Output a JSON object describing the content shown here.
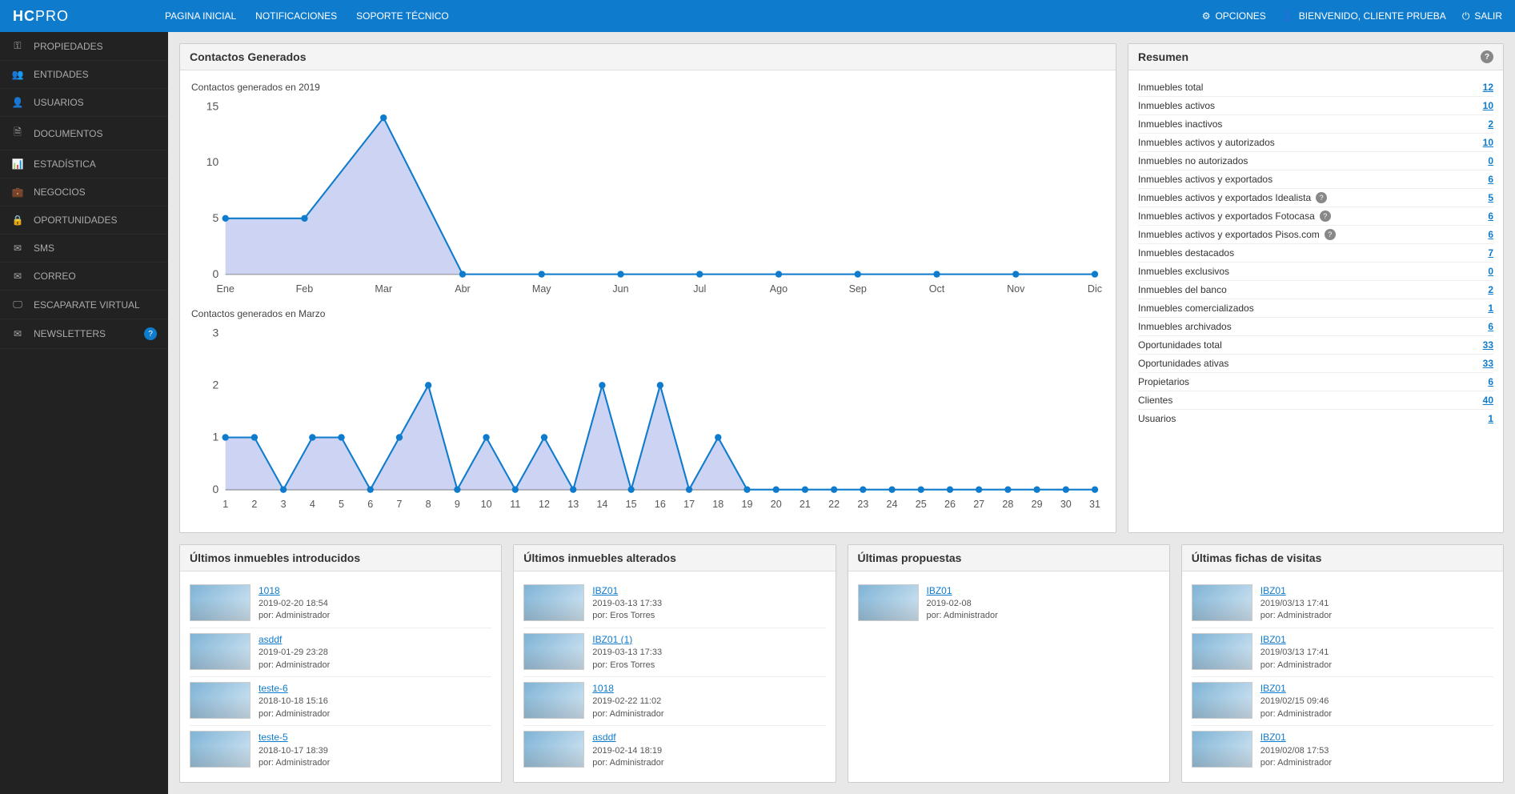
{
  "brand": {
    "pre": "HC",
    "post": "PRO"
  },
  "topnav": [
    {
      "label": "PAGINA INICIAL"
    },
    {
      "label": "NOTIFICACIONES"
    },
    {
      "label": "SOPORTE TÉCNICO"
    }
  ],
  "topright": {
    "options": "OPCIONES",
    "welcome": "BIENVENIDO, CLIENTE PRUEBA",
    "logout": "SALIR"
  },
  "sidebar": [
    {
      "icon": "key",
      "label": "PROPIEDADES"
    },
    {
      "icon": "users",
      "label": "ENTIDADES"
    },
    {
      "icon": "user",
      "label": "USUARIOS"
    },
    {
      "icon": "doc",
      "label": "DOCUMENTOS"
    },
    {
      "icon": "bars",
      "label": "ESTADÍSTICA"
    },
    {
      "icon": "briefcase",
      "label": "NEGOCIOS"
    },
    {
      "icon": "lock",
      "label": "OPORTUNIDADES"
    },
    {
      "icon": "phone",
      "label": "SMS"
    },
    {
      "icon": "mail",
      "label": "CORREO"
    },
    {
      "icon": "screen",
      "label": "ESCAPARATE VIRTUAL"
    },
    {
      "icon": "mail",
      "label": "NEWSLETTERS",
      "badge": "?"
    }
  ],
  "charts_panel": {
    "title": "Contactos Generados",
    "chart_year": {
      "title": "Contactos generados en 2019",
      "type": "area",
      "labels": [
        "Ene",
        "Feb",
        "Mar",
        "Abr",
        "May",
        "Jun",
        "Jul",
        "Ago",
        "Sep",
        "Oct",
        "Nov",
        "Dic"
      ],
      "values": [
        5,
        5,
        14,
        0,
        0,
        0,
        0,
        0,
        0,
        0,
        0,
        0
      ],
      "ylim": [
        0,
        15
      ],
      "yticks": [
        0,
        5,
        10,
        15
      ],
      "stroke": "#0f7bcc",
      "fill": "#cdd3f2",
      "marker": "#0f7bcc",
      "bg": "#ffffff",
      "axis": "#555555"
    },
    "chart_month": {
      "title": "Contactos generados en Marzo",
      "type": "area",
      "labels": [
        "1",
        "2",
        "3",
        "4",
        "5",
        "6",
        "7",
        "8",
        "9",
        "10",
        "11",
        "12",
        "13",
        "14",
        "15",
        "16",
        "17",
        "18",
        "19",
        "20",
        "21",
        "22",
        "23",
        "24",
        "25",
        "26",
        "27",
        "28",
        "29",
        "30",
        "31"
      ],
      "values": [
        1,
        1,
        0,
        1,
        1,
        0,
        1,
        2,
        0,
        1,
        0,
        1,
        0,
        2,
        0,
        2,
        0,
        1,
        0,
        0,
        0,
        0,
        0,
        0,
        0,
        0,
        0,
        0,
        0,
        0,
        0
      ],
      "ylim": [
        0,
        3
      ],
      "yticks": [
        0,
        1,
        2,
        3
      ],
      "stroke": "#0f7bcc",
      "fill": "#cdd3f2",
      "marker": "#0f7bcc",
      "bg": "#ffffff",
      "axis": "#555555"
    }
  },
  "summary": {
    "title": "Resumen",
    "rows": [
      {
        "label": "Inmuebles total",
        "value": "12"
      },
      {
        "label": "Inmuebles activos",
        "value": "10"
      },
      {
        "label": "Inmuebles inactivos",
        "value": "2"
      },
      {
        "label": "Inmuebles activos y autorizados",
        "value": "10"
      },
      {
        "label": "Inmuebles no autorizados",
        "value": "0"
      },
      {
        "label": "Inmuebles activos y exportados",
        "value": "6"
      },
      {
        "label": "Inmuebles activos y exportados Idealista",
        "value": "5",
        "help": true
      },
      {
        "label": "Inmuebles activos y exportados Fotocasa",
        "value": "6",
        "help": true
      },
      {
        "label": "Inmuebles activos y exportados Pisos.com",
        "value": "6",
        "help": true
      },
      {
        "label": "Inmuebles destacados",
        "value": "7"
      },
      {
        "label": "Inmuebles exclusivos",
        "value": "0"
      },
      {
        "label": "Inmuebles del banco",
        "value": "2"
      },
      {
        "label": "Inmuebles comercializados",
        "value": "1"
      },
      {
        "label": "Inmuebles archivados",
        "value": "6"
      },
      {
        "label": "Oportunidades total",
        "value": "33"
      },
      {
        "label": "Oportunidades ativas",
        "value": "33"
      },
      {
        "label": "Propietarios",
        "value": "6"
      },
      {
        "label": "Clientes",
        "value": "40"
      },
      {
        "label": "Usuarios",
        "value": "1"
      }
    ]
  },
  "columns": [
    {
      "title": "Últimos inmuebles introducidos",
      "items": [
        {
          "link": "1018",
          "date": "2019-02-20 18:54",
          "by": "por: Administrador"
        },
        {
          "link": "asddf",
          "date": "2019-01-29 23:28",
          "by": "por: Administrador"
        },
        {
          "link": "teste-6",
          "date": "2018-10-18 15:16",
          "by": "por: Administrador"
        },
        {
          "link": "teste-5",
          "date": "2018-10-17 18:39",
          "by": "por: Administrador"
        }
      ]
    },
    {
      "title": "Últimos inmuebles alterados",
      "items": [
        {
          "link": "IBZ01",
          "date": "2019-03-13 17:33",
          "by": "por: Eros Torres"
        },
        {
          "link": "IBZ01 (1)",
          "date": "2019-03-13 17:33",
          "by": "por: Eros Torres"
        },
        {
          "link": "1018",
          "date": "2019-02-22 11:02",
          "by": "por: Administrador"
        },
        {
          "link": "asddf",
          "date": "2019-02-14 18:19",
          "by": "por: Administrador"
        }
      ]
    },
    {
      "title": "Últimas propuestas",
      "items": [
        {
          "link": "IBZ01",
          "date": "2019-02-08",
          "by": "por: Administrador"
        }
      ]
    },
    {
      "title": "Últimas fichas de visitas",
      "items": [
        {
          "link": "IBZ01",
          "date": "2019/03/13 17:41",
          "by": "por: Administrador"
        },
        {
          "link": "IBZ01",
          "date": "2019/03/13 17:41",
          "by": "por: Administrador"
        },
        {
          "link": "IBZ01",
          "date": "2019/02/15 09:46",
          "by": "por: Administrador"
        },
        {
          "link": "IBZ01",
          "date": "2019/02/08 17:53",
          "by": "por: Administrador"
        }
      ]
    }
  ]
}
